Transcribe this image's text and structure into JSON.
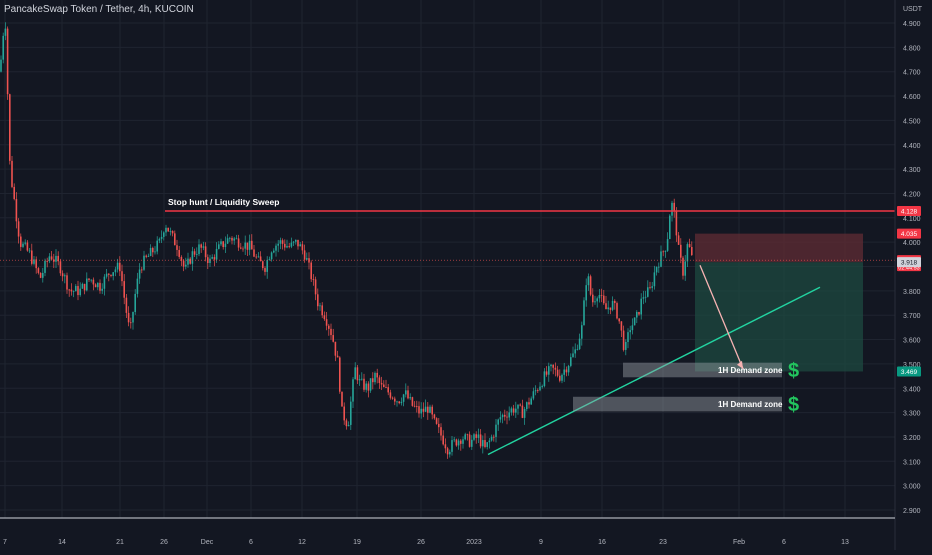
{
  "header": {
    "symbol_title": "PancakeSwap Token / Tether, 4h, KUCOIN"
  },
  "colors": {
    "background": "#131722",
    "grid": "#1f2430",
    "axis_text": "#b2b5be",
    "up": "#26a69a",
    "down": "#ef5350",
    "resistance_line": "#f23645",
    "trendline": "#22d3a0",
    "target_zone": "#1e4a40",
    "stop_zone": "#5b2a33",
    "zone_box": "#9aa0a6",
    "dollar": "#22c55e",
    "arrow": "#f7b3b3"
  },
  "chart_data": {
    "type": "candlestick",
    "title": "PancakeSwap Token / Tether, 4h, KUCOIN",
    "y_unit": "USDT",
    "ylim": [
      2.87,
      4.98
    ],
    "y_ticks": [
      "4.900",
      "4.800",
      "4.700",
      "4.600",
      "4.500",
      "4.400",
      "4.300",
      "4.200",
      "4.100",
      "4.000",
      "3.900",
      "3.800",
      "3.700",
      "3.600",
      "3.500",
      "3.400",
      "3.300",
      "3.200",
      "3.100",
      "3.000",
      "2.900"
    ],
    "x_ticks": [
      "7",
      "14",
      "21",
      "26",
      "Dec",
      "6",
      "12",
      "19",
      "26",
      "2023",
      "9",
      "16",
      "23",
      "Feb",
      "6",
      "13"
    ],
    "price_labels": [
      {
        "text": "4.128",
        "value": 4.128,
        "kind": "resistance"
      },
      {
        "text": "4.035",
        "value": 4.035,
        "kind": "stop"
      },
      {
        "text": "3.926",
        "value": 3.926,
        "kind": "last",
        "countdown": "02:44:53"
      },
      {
        "text": "3.918",
        "value": 3.918,
        "kind": "entry"
      },
      {
        "text": "3.469",
        "value": 3.469,
        "kind": "target"
      }
    ],
    "annotations": {
      "liquidity_label": "Stop hunt / Liquidity Sweep",
      "demand_zone_1": "1H Demand zone",
      "demand_zone_2": "1H Demand zone",
      "dollar_sign": "$"
    },
    "path": [
      [
        0,
        4.7
      ],
      [
        5,
        4.95
      ],
      [
        10,
        4.3
      ],
      [
        20,
        4.0
      ],
      [
        30,
        3.95
      ],
      [
        40,
        3.85
      ],
      [
        50,
        3.95
      ],
      [
        60,
        3.9
      ],
      [
        70,
        3.8
      ],
      [
        80,
        3.8
      ],
      [
        90,
        3.85
      ],
      [
        100,
        3.82
      ],
      [
        110,
        3.88
      ],
      [
        120,
        3.9
      ],
      [
        125,
        3.75
      ],
      [
        130,
        3.62
      ],
      [
        135,
        3.78
      ],
      [
        140,
        3.9
      ],
      [
        150,
        3.95
      ],
      [
        160,
        4.0
      ],
      [
        165,
        4.08
      ],
      [
        172,
        4.02
      ],
      [
        178,
        3.98
      ],
      [
        185,
        3.88
      ],
      [
        192,
        3.95
      ],
      [
        200,
        3.98
      ],
      [
        210,
        3.92
      ],
      [
        220,
        3.98
      ],
      [
        230,
        4.02
      ],
      [
        240,
        4.0
      ],
      [
        250,
        3.98
      ],
      [
        258,
        3.92
      ],
      [
        265,
        3.9
      ],
      [
        272,
        3.98
      ],
      [
        280,
        4.0
      ],
      [
        290,
        3.98
      ],
      [
        297,
        4.0
      ],
      [
        305,
        3.95
      ],
      [
        312,
        3.85
      ],
      [
        318,
        3.75
      ],
      [
        325,
        3.7
      ],
      [
        332,
        3.62
      ],
      [
        338,
        3.5
      ],
      [
        342,
        3.3
      ],
      [
        348,
        3.25
      ],
      [
        355,
        3.48
      ],
      [
        360,
        3.42
      ],
      [
        368,
        3.4
      ],
      [
        375,
        3.45
      ],
      [
        382,
        3.4
      ],
      [
        390,
        3.38
      ],
      [
        398,
        3.35
      ],
      [
        405,
        3.38
      ],
      [
        412,
        3.33
      ],
      [
        420,
        3.3
      ],
      [
        428,
        3.32
      ],
      [
        435,
        3.25
      ],
      [
        442,
        3.2
      ],
      [
        448,
        3.15
      ],
      [
        455,
        3.18
      ],
      [
        462,
        3.2
      ],
      [
        470,
        3.18
      ],
      [
        478,
        3.2
      ],
      [
        485,
        3.15
      ],
      [
        492,
        3.2
      ],
      [
        500,
        3.28
      ],
      [
        507,
        3.3
      ],
      [
        515,
        3.32
      ],
      [
        522,
        3.3
      ],
      [
        530,
        3.35
      ],
      [
        537,
        3.4
      ],
      [
        545,
        3.45
      ],
      [
        552,
        3.48
      ],
      [
        560,
        3.45
      ],
      [
        568,
        3.5
      ],
      [
        575,
        3.55
      ],
      [
        582,
        3.65
      ],
      [
        587,
        3.88
      ],
      [
        592,
        3.75
      ],
      [
        598,
        3.8
      ],
      [
        605,
        3.72
      ],
      [
        612,
        3.75
      ],
      [
        618,
        3.7
      ],
      [
        625,
        3.55
      ],
      [
        630,
        3.65
      ],
      [
        636,
        3.68
      ],
      [
        643,
        3.78
      ],
      [
        650,
        3.8
      ],
      [
        656,
        3.9
      ],
      [
        662,
        3.95
      ],
      [
        667,
        4.0
      ],
      [
        671,
        4.17
      ],
      [
        675,
        4.1
      ],
      [
        679,
        3.95
      ],
      [
        683,
        3.88
      ],
      [
        688,
        4.0
      ],
      [
        692,
        3.93
      ]
    ]
  }
}
